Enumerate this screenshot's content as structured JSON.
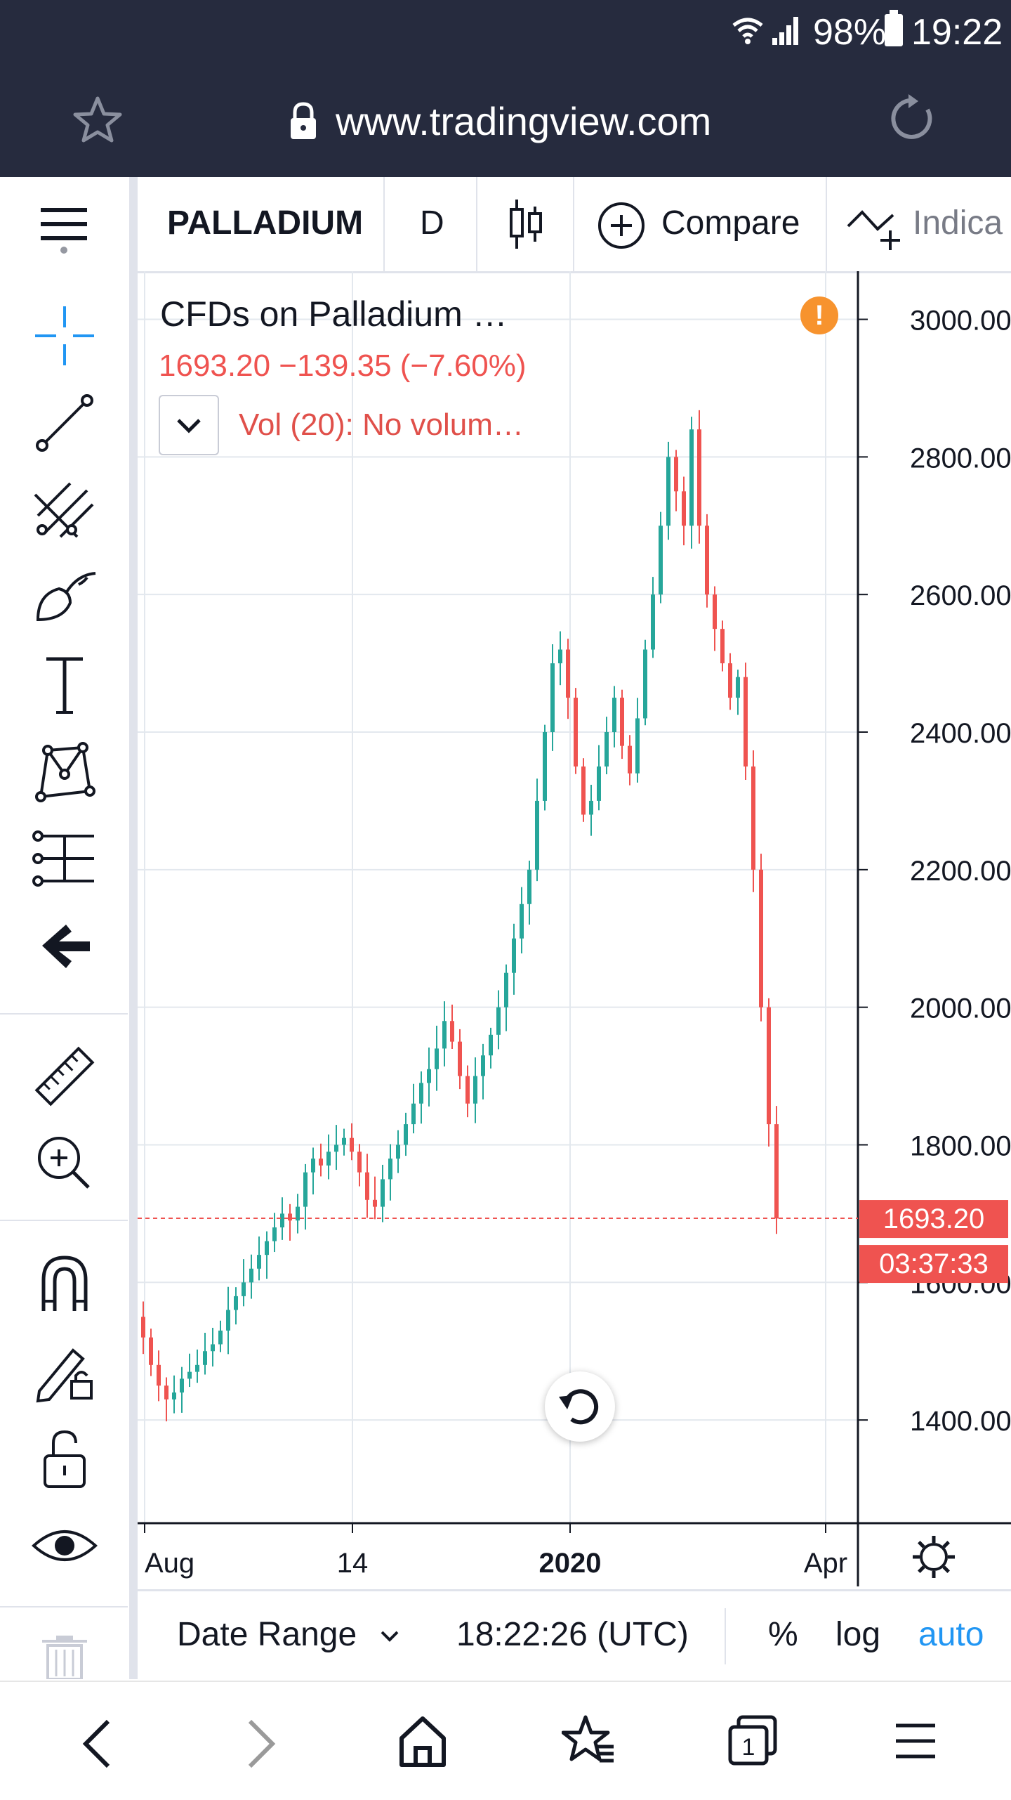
{
  "status_bar": {
    "battery": "98%",
    "time": "19:22"
  },
  "browser": {
    "url": "www.tradingview.com"
  },
  "toolbar": {
    "symbol": "PALLADIUM",
    "interval": "D",
    "compare_label": "Compare",
    "indicators_label": "Indica"
  },
  "legend": {
    "title": "CFDs on Palladium …",
    "price_line": "1693.20  −139.35 (−7.60%)",
    "volume_label": "Vol (20): No volum…"
  },
  "price_axis": {
    "ticks": [
      "3000.00",
      "2800.00",
      "2600.00",
      "2400.00",
      "2200.00",
      "2000.00",
      "1800.00",
      "1600.00",
      "1400.00"
    ],
    "last_price_label": "1693.20",
    "countdown_label": "03:37:33"
  },
  "time_axis": {
    "ticks": [
      "Aug",
      "14",
      "2020",
      "Apr"
    ]
  },
  "chart_bottom": {
    "date_range_label": "Date Range",
    "clock": "18:22:26 (UTC)",
    "percent_label": "%",
    "log_label": "log",
    "auto_label": "auto"
  },
  "colors": {
    "up": "#26a69a",
    "down": "#ef5350",
    "accent": "#2196f3",
    "browser_bg": "#262b3e",
    "warning": "#f7932e"
  },
  "chart_data": {
    "type": "candlestick",
    "x_range": [
      "2019-07",
      "2020-04"
    ],
    "ylim": [
      1250,
      3070
    ],
    "last_price": 1693.2,
    "change": -139.35,
    "change_pct": -7.6,
    "close_series": [
      1520,
      1480,
      1450,
      1430,
      1440,
      1460,
      1470,
      1480,
      1500,
      1510,
      1530,
      1560,
      1580,
      1600,
      1620,
      1640,
      1660,
      1680,
      1700,
      1690,
      1710,
      1760,
      1780,
      1770,
      1790,
      1800,
      1810,
      1790,
      1760,
      1720,
      1710,
      1750,
      1780,
      1800,
      1830,
      1860,
      1890,
      1910,
      1940,
      1980,
      1950,
      1900,
      1860,
      1900,
      1930,
      1960,
      2000,
      2050,
      2100,
      2150,
      2200,
      2300,
      2400,
      2500,
      2520,
      2450,
      2350,
      2280,
      2300,
      2350,
      2400,
      2450,
      2380,
      2340,
      2420,
      2520,
      2600,
      2700,
      2800,
      2750,
      2700,
      2840,
      2700,
      2600,
      2550,
      2500,
      2450,
      2480,
      2350,
      2200,
      2000,
      1830,
      1693
    ]
  }
}
